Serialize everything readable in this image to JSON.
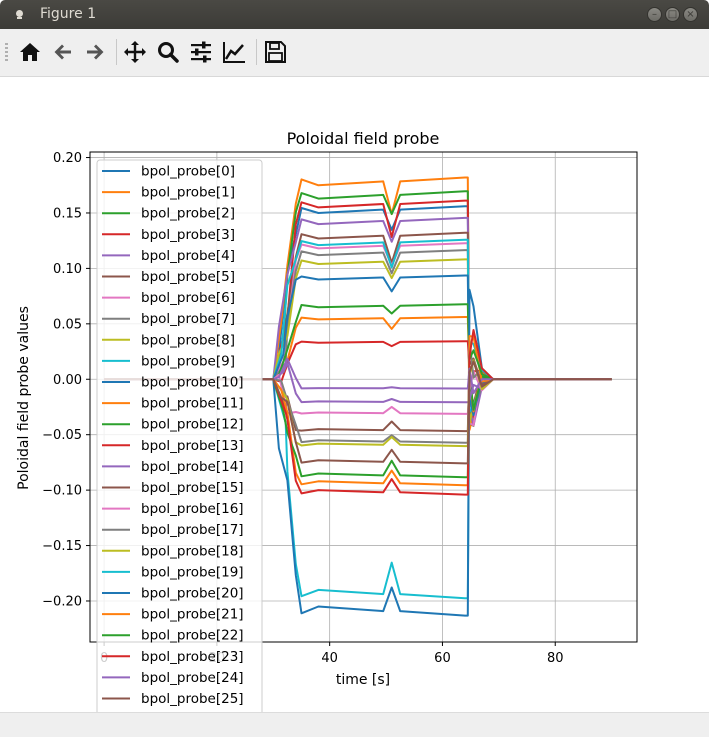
{
  "window": {
    "title": "Figure 1",
    "controls": [
      "minimize",
      "maximize",
      "close"
    ]
  },
  "toolbar": {
    "buttons": [
      {
        "name": "home-button",
        "icon": "home-icon"
      },
      {
        "name": "back-button",
        "icon": "arrow-left-icon"
      },
      {
        "name": "forward-button",
        "icon": "arrow-right-icon"
      },
      {
        "name": "pan-button",
        "icon": "move-arrows-icon"
      },
      {
        "name": "zoom-button",
        "icon": "magnifier-icon"
      },
      {
        "name": "subplots-button",
        "icon": "sliders-icon"
      },
      {
        "name": "edit-axis-button",
        "icon": "line-chart-icon"
      },
      {
        "name": "save-button",
        "icon": "floppy-disk-icon"
      }
    ]
  },
  "chart_data": {
    "type": "line",
    "title": "Poloidal field probe",
    "xlabel": "time [s]",
    "ylabel": "Poloidal field probe values",
    "xlim": [
      -2.5,
      94.5
    ],
    "ylim": [
      -0.237,
      0.205
    ],
    "xticks": [
      0,
      20,
      40,
      60,
      80
    ],
    "xtick_labels": [
      "0",
      "20",
      "40",
      "60",
      "80"
    ],
    "yticks": [
      0.2,
      0.15,
      0.1,
      0.05,
      0.0,
      -0.05,
      -0.1,
      -0.15,
      -0.2
    ],
    "ytick_labels": [
      "0.20",
      "0.15",
      "0.10",
      "0.05",
      "0.00",
      "−0.05",
      "−0.10",
      "−0.15",
      "−0.20"
    ],
    "grid": true,
    "legend_position": "upper-left",
    "palette": [
      "#1f77b4",
      "#ff7f0e",
      "#2ca02c",
      "#d62728",
      "#9467bd",
      "#8c564b",
      "#e377c2",
      "#7f7f7f",
      "#bcbd22",
      "#17becf"
    ],
    "plateau_start": 35,
    "plateau_end": 64.5,
    "blip_time": 51,
    "series": [
      {
        "name": "bpol_probe[0]",
        "plateau": 0.15
      },
      {
        "name": "bpol_probe[1]",
        "plateau": 0.175
      },
      {
        "name": "bpol_probe[2]",
        "plateau": 0.163
      },
      {
        "name": "bpol_probe[3]",
        "plateau": 0.155
      },
      {
        "name": "bpol_probe[4]",
        "plateau": 0.14
      },
      {
        "name": "bpol_probe[5]",
        "plateau": 0.127
      },
      {
        "name": "bpol_probe[6]",
        "plateau": 0.118
      },
      {
        "name": "bpol_probe[7]",
        "plateau": 0.112
      },
      {
        "name": "bpol_probe[8]",
        "plateau": 0.104
      },
      {
        "name": "bpol_probe[9]",
        "plateau": 0.121
      },
      {
        "name": "bpol_probe[10]",
        "plateau": 0.09
      },
      {
        "name": "bpol_probe[11]",
        "plateau": 0.054
      },
      {
        "name": "bpol_probe[12]",
        "plateau": 0.065
      },
      {
        "name": "bpol_probe[13]",
        "plateau": 0.033
      },
      {
        "name": "bpol_probe[14]",
        "plateau": -0.02
      },
      {
        "name": "bpol_probe[15]",
        "plateau": -0.045
      },
      {
        "name": "bpol_probe[16]",
        "plateau": -0.03
      },
      {
        "name": "bpol_probe[17]",
        "plateau": -0.055
      },
      {
        "name": "bpol_probe[18]",
        "plateau": -0.058
      },
      {
        "name": "bpol_probe[19]",
        "plateau": -0.19
      },
      {
        "name": "bpol_probe[20]",
        "plateau": -0.205
      },
      {
        "name": "bpol_probe[21]",
        "plateau": -0.092
      },
      {
        "name": "bpol_probe[22]",
        "plateau": -0.085
      },
      {
        "name": "bpol_probe[23]",
        "plateau": -0.1
      },
      {
        "name": "bpol_probe[24]",
        "plateau": -0.008
      },
      {
        "name": "bpol_probe[25]",
        "plateau": -0.073
      }
    ]
  }
}
